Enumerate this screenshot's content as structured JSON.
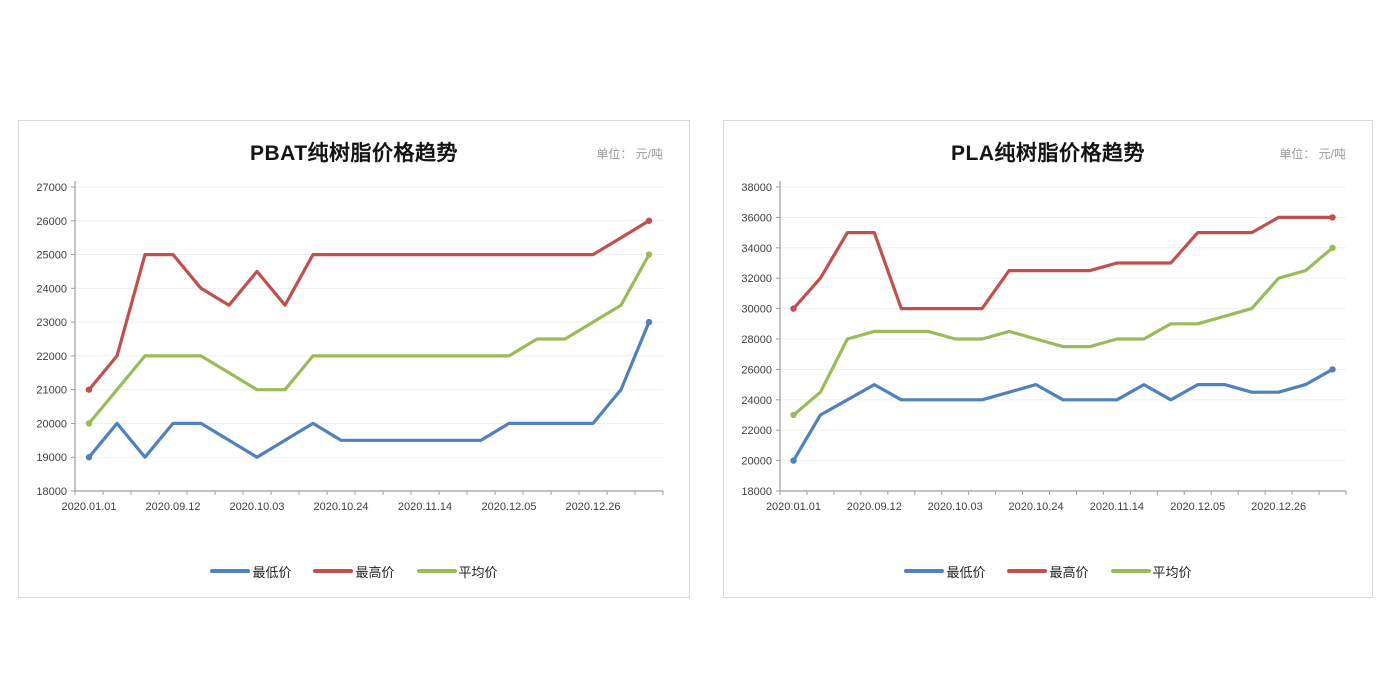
{
  "page": {
    "background": "#ffffff"
  },
  "colors": {
    "lowest": "#4F81BD",
    "highest": "#C0504D",
    "average": "#9BBB59",
    "grid": "#efefef",
    "axis": "#9e9e9e",
    "axis_text": "#3f3f3f",
    "title_text": "#141414",
    "unit_text": "#9a9a9a"
  },
  "charts": [
    {
      "title": "PBAT纯树脂价格趋势",
      "unit_label": "单位： 元/吨"
    },
    {
      "title": "PLA纯树脂价格趋势",
      "unit_label": "单位： 元/吨"
    }
  ],
  "chart_data": [
    {
      "type": "line",
      "title": "PBAT纯树脂价格趋势",
      "unit": "元/吨",
      "xlabel": "",
      "ylabel": "",
      "ylim": [
        18000,
        27000
      ],
      "ytick_step": 1000,
      "n_points": 21,
      "x_label_every": 3,
      "x_tick_labels": [
        "2020.01.01",
        "2020.09.12",
        "2020.10.03",
        "2020.10.24",
        "2020.11.14",
        "2020.12.05",
        "2020.12.26"
      ],
      "grid": true,
      "legend_position": "bottom",
      "series": [
        {
          "name": "最低价",
          "color": "#4F81BD",
          "values": [
            19000,
            20000,
            19000,
            20000,
            20000,
            19500,
            19000,
            19500,
            20000,
            19500,
            19500,
            19500,
            19500,
            19500,
            19500,
            20000,
            20000,
            20000,
            20000,
            21000,
            23000
          ]
        },
        {
          "name": "最高价",
          "color": "#C0504D",
          "values": [
            21000,
            22000,
            25000,
            25000,
            24000,
            23500,
            24500,
            23500,
            25000,
            25000,
            25000,
            25000,
            25000,
            25000,
            25000,
            25000,
            25000,
            25000,
            25000,
            25500,
            26000
          ]
        },
        {
          "name": "平均价",
          "color": "#9BBB59",
          "values": [
            20000,
            21000,
            22000,
            22000,
            22000,
            21500,
            21000,
            21000,
            22000,
            22000,
            22000,
            22000,
            22000,
            22000,
            22000,
            22000,
            22500,
            22500,
            23000,
            23500,
            25000
          ]
        }
      ]
    },
    {
      "type": "line",
      "title": "PLA纯树脂价格趋势",
      "unit": "元/吨",
      "xlabel": "",
      "ylabel": "",
      "ylim": [
        18000,
        38000
      ],
      "ytick_step": 2000,
      "n_points": 21,
      "x_label_every": 3,
      "x_tick_labels": [
        "2020.01.01",
        "2020.09.12",
        "2020.10.03",
        "2020.10.24",
        "2020.11.14",
        "2020.12.05",
        "2020.12.26"
      ],
      "grid": true,
      "legend_position": "bottom",
      "series": [
        {
          "name": "最低价",
          "color": "#4F81BD",
          "values": [
            20000,
            23000,
            24000,
            25000,
            24000,
            24000,
            24000,
            24000,
            24500,
            25000,
            24000,
            24000,
            24000,
            25000,
            24000,
            25000,
            25000,
            24500,
            24500,
            25000,
            26000
          ]
        },
        {
          "name": "最高价",
          "color": "#C0504D",
          "values": [
            30000,
            32000,
            35000,
            35000,
            30000,
            30000,
            30000,
            30000,
            32500,
            32500,
            32500,
            32500,
            33000,
            33000,
            33000,
            35000,
            35000,
            35000,
            36000,
            36000,
            36000
          ]
        },
        {
          "name": "平均价",
          "color": "#9BBB59",
          "values": [
            23000,
            24500,
            28000,
            28500,
            28500,
            28500,
            28000,
            28000,
            28500,
            28000,
            27500,
            27500,
            28000,
            28000,
            29000,
            29000,
            29500,
            30000,
            32000,
            32500,
            34000
          ]
        }
      ]
    }
  ]
}
